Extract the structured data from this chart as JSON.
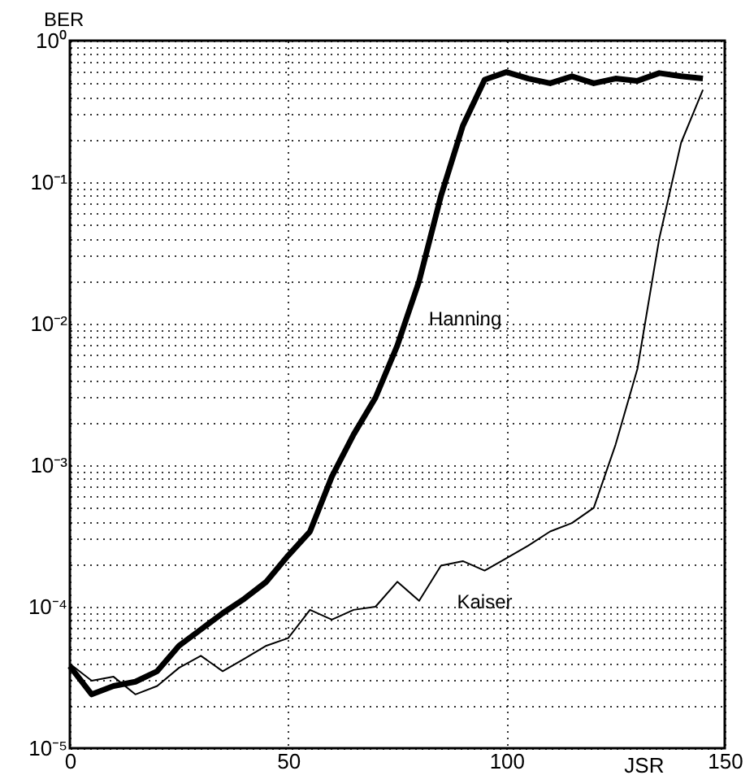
{
  "chart_data": {
    "type": "line",
    "xlabel": "JSR",
    "ylabel": "BER",
    "x": [
      0,
      5,
      10,
      15,
      20,
      25,
      30,
      35,
      40,
      45,
      50,
      55,
      60,
      65,
      70,
      75,
      80,
      85,
      90,
      95,
      100,
      105,
      110,
      115,
      120,
      125,
      130,
      135,
      140,
      145
    ],
    "series": [
      {
        "name": "Hanning",
        "color": "#000000",
        "values": [
          3.8e-05,
          2.4e-05,
          2.75e-05,
          2.95e-05,
          3.5e-05,
          5.3e-05,
          6.9e-05,
          9e-05,
          0.000114,
          0.00015,
          0.00023,
          0.00034,
          0.00083,
          0.00165,
          0.003,
          0.007,
          0.02,
          0.08,
          0.25,
          0.53,
          0.6,
          0.54,
          0.5,
          0.56,
          0.5,
          0.54,
          0.52,
          0.59,
          0.56,
          0.54
        ]
      },
      {
        "name": "Kaiser",
        "color": "#000000",
        "values": [
          3.95e-05,
          3e-05,
          3.2e-05,
          2.4e-05,
          2.75e-05,
          3.7e-05,
          4.5e-05,
          3.5e-05,
          4.3e-05,
          5.3e-05,
          6e-05,
          9.5e-05,
          8.1e-05,
          9.5e-05,
          0.0001,
          0.00015,
          0.00011,
          0.000195,
          0.00021,
          0.00018,
          0.00022,
          0.00027,
          0.00034,
          0.00039,
          0.0005,
          0.0014,
          0.0048,
          0.04,
          0.19,
          0.45
        ]
      }
    ],
    "log": "y",
    "xlim": [
      0,
      150
    ],
    "xticks": [
      0,
      50,
      100,
      150
    ],
    "ylim": [
      1e-05,
      1
    ],
    "yticks": [
      {
        "value": 1e-05,
        "label": "10⁻⁵"
      },
      {
        "value": 0.0001,
        "label": "10⁻⁴"
      },
      {
        "value": 0.001,
        "label": "10⁻³"
      },
      {
        "value": 0.01,
        "label": "10⁻²"
      },
      {
        "value": 0.1,
        "label": "10⁻¹"
      },
      {
        "value": 1,
        "label": "10⁰"
      }
    ],
    "grid": true,
    "marker": "none",
    "line_style": "solid"
  }
}
